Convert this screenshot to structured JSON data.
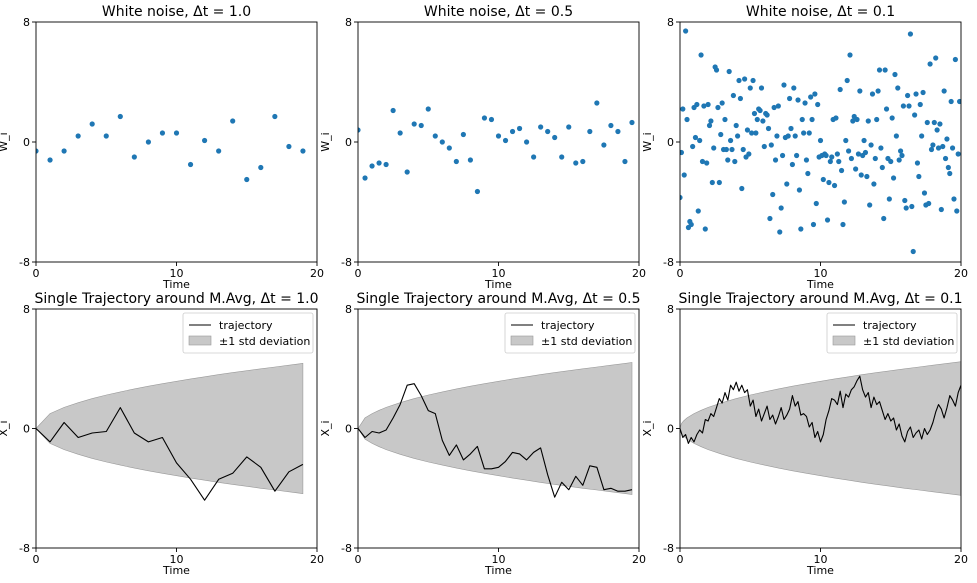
{
  "colors": {
    "point": "#1f77b4",
    "line": "#000000",
    "band": "#c8c8c8",
    "band_edge": "#9a9a9a"
  },
  "chart_data": [
    {
      "type": "scatter",
      "title": "White noise, Δt = 1.0",
      "xlabel": "Time",
      "ylabel": "W_i",
      "xlim": [
        0,
        20
      ],
      "ylim": [
        -8,
        8
      ],
      "xticks": [
        0,
        10,
        20
      ],
      "yticks": [
        -8,
        0,
        8
      ],
      "x": [
        0,
        1,
        2,
        3,
        4,
        5,
        6,
        7,
        8,
        9,
        10,
        11,
        12,
        13,
        14,
        15,
        16,
        17,
        18,
        19
      ],
      "y": [
        -0.6,
        -1.2,
        -0.6,
        0.4,
        1.2,
        0.4,
        1.7,
        -1.0,
        0.0,
        0.6,
        0.6,
        -1.5,
        0.1,
        -0.6,
        1.4,
        -2.5,
        -1.7,
        1.7,
        -0.3,
        -0.6
      ]
    },
    {
      "type": "scatter",
      "title": "White noise, Δt = 0.5",
      "xlabel": "Time",
      "ylabel": "W_i",
      "xlim": [
        0,
        20
      ],
      "ylim": [
        -8,
        8
      ],
      "xticks": [
        0,
        10,
        20
      ],
      "yticks": [
        -8,
        0,
        8
      ],
      "x": [
        0,
        0.5,
        1,
        1.5,
        2,
        2.5,
        3,
        3.5,
        4,
        4.5,
        5,
        5.5,
        6,
        6.5,
        7,
        7.5,
        8,
        8.5,
        9,
        9.5,
        10,
        10.5,
        11,
        11.5,
        12,
        12.5,
        13,
        13.5,
        14,
        14.5,
        15,
        15.5,
        16,
        16.5,
        17,
        17.5,
        18,
        18.5,
        19,
        19.5
      ],
      "y": [
        0.8,
        -2.4,
        -1.6,
        -1.4,
        -1.5,
        2.1,
        0.6,
        -2.0,
        1.2,
        1.1,
        2.2,
        0.4,
        0.0,
        -0.4,
        -1.3,
        0.5,
        -1.2,
        -3.3,
        1.6,
        1.5,
        0.4,
        0.1,
        0.7,
        0.9,
        0.0,
        -1.0,
        1.0,
        0.7,
        0.3,
        -1.0,
        1.0,
        -1.4,
        -1.3,
        0.7,
        2.6,
        -0.2,
        1.1,
        0.7,
        -1.3,
        1.3
      ]
    },
    {
      "type": "scatter",
      "title": "White noise, Δt = 0.1",
      "xlabel": "Time",
      "ylabel": "W_i",
      "xlim": [
        0,
        20
      ],
      "ylim": [
        -8,
        8
      ],
      "xticks": [
        0,
        10,
        20
      ],
      "yticks": [
        -8,
        0,
        8
      ],
      "x": [
        0,
        0.1,
        0.2,
        0.3,
        0.4,
        0.5,
        0.6,
        0.7,
        0.8,
        0.9,
        1,
        1.1,
        1.2,
        1.3,
        1.4,
        1.5,
        1.6,
        1.7,
        1.8,
        1.9,
        2,
        2.1,
        2.2,
        2.3,
        2.4,
        2.5,
        2.6,
        2.7,
        2.8,
        2.9,
        3,
        3.1,
        3.2,
        3.3,
        3.4,
        3.5,
        3.6,
        3.7,
        3.8,
        3.9,
        4,
        4.1,
        4.2,
        4.3,
        4.4,
        4.5,
        4.6,
        4.7,
        4.8,
        4.9,
        5,
        5.1,
        5.2,
        5.3,
        5.4,
        5.5,
        5.6,
        5.7,
        5.8,
        5.9,
        6,
        6.1,
        6.2,
        6.3,
        6.4,
        6.5,
        6.6,
        6.7,
        6.8,
        6.9,
        7,
        7.1,
        7.2,
        7.3,
        7.4,
        7.5,
        7.6,
        7.7,
        7.8,
        7.9,
        8,
        8.1,
        8.2,
        8.3,
        8.4,
        8.5,
        8.6,
        8.7,
        8.8,
        8.9,
        9,
        9.1,
        9.2,
        9.3,
        9.4,
        9.5,
        9.6,
        9.7,
        9.8,
        9.9,
        10,
        10.1,
        10.2,
        10.3,
        10.4,
        10.5,
        10.6,
        10.7,
        10.8,
        10.9,
        11,
        11.1,
        11.2,
        11.3,
        11.4,
        11.5,
        11.6,
        11.7,
        11.8,
        11.9,
        12,
        12.1,
        12.2,
        12.3,
        12.4,
        12.5,
        12.6,
        12.7,
        12.8,
        12.9,
        13,
        13.1,
        13.2,
        13.3,
        13.4,
        13.5,
        13.6,
        13.7,
        13.8,
        13.9,
        14,
        14.1,
        14.2,
        14.3,
        14.4,
        14.5,
        14.6,
        14.7,
        14.8,
        14.9,
        15,
        15.1,
        15.2,
        15.3,
        15.4,
        15.5,
        15.6,
        15.7,
        15.8,
        15.9,
        16,
        16.1,
        16.2,
        16.3,
        16.4,
        16.5,
        16.6,
        16.7,
        16.8,
        16.9,
        17,
        17.1,
        17.2,
        17.3,
        17.4,
        17.5,
        17.6,
        17.7,
        17.8,
        17.9,
        18,
        18.1,
        18.2,
        18.3,
        18.4,
        18.5,
        18.6,
        18.7,
        18.8,
        18.9,
        19,
        19.1,
        19.2,
        19.3,
        19.4,
        19.5,
        19.6,
        19.7,
        19.8,
        19.9
      ],
      "y": [
        -3.7,
        -0.7,
        2.2,
        -2.2,
        7.4,
        1.5,
        -5.7,
        -5.3,
        -5.5,
        -0.3,
        2.3,
        0.3,
        2.5,
        -4.6,
        0.1,
        5.8,
        -1.3,
        2.4,
        -5.8,
        -1.4,
        2.5,
        1.1,
        1.4,
        -2.7,
        -0.4,
        5.0,
        4.8,
        2.3,
        -2.7,
        0.5,
        2.6,
        -0.5,
        1.5,
        -0.5,
        -1.2,
        4.7,
        0.1,
        -0.5,
        3.1,
        -1.3,
        1.1,
        0.4,
        4.1,
        2.9,
        -3.1,
        -0.5,
        4.2,
        -1.0,
        0.8,
        -0.8,
        3.6,
        0.6,
        4.1,
        1.9,
        0.6,
        1.5,
        2.2,
        2.1,
        3.6,
        1.4,
        -0.3,
        1.9,
        1.8,
        0.9,
        -5.1,
        -0.2,
        -3.5,
        2.3,
        -1.2,
        0.4,
        2.4,
        -6.0,
        -4.4,
        -0.9,
        3.8,
        0.3,
        -2.8,
        0.4,
        2.9,
        0.9,
        -1.5,
        3.6,
        0.4,
        -0.9,
        2.8,
        -3.2,
        -5.8,
        1.5,
        0.6,
        2.6,
        -1.2,
        -2.1,
        0.6,
        3.0,
        1.5,
        -5.5,
        3.2,
        -4.1,
        2.5,
        -1.0,
        0.1,
        -0.9,
        -2.5,
        -0.8,
        -0.9,
        -5.2,
        -2.7,
        -1.3,
        -1.0,
        1.5,
        -2.9,
        1.6,
        -0.8,
        -1.3,
        3.5,
        -1.9,
        -5.5,
        -4.0,
        0.1,
        4.1,
        -0.6,
        5.8,
        -1.1,
        1.4,
        1.7,
        -1.8,
        1.5,
        -0.8,
        3.4,
        -2.2,
        -0.9,
        0.1,
        -0.7,
        -2.3,
        1.4,
        -4.2,
        -0.2,
        3.2,
        -2.8,
        -1.1,
        1.5,
        3.4,
        4.8,
        -0.4,
        -1.7,
        -5.1,
        4.8,
        2.2,
        -1.1,
        -3.8,
        -1.3,
        1.6,
        -2.4,
        4.5,
        0.4,
        3.6,
        -1.2,
        -0.6,
        -0.9,
        2.4,
        -3.9,
        -4.4,
        3.1,
        2.4,
        7.2,
        -4.3,
        -7.3,
        1.8,
        3.2,
        -1.4,
        -2.3,
        2.5,
        0.4,
        3.3,
        -3.4,
        -4.2,
        1.3,
        -4.1,
        5.2,
        -0.5,
        -0.2,
        1.3,
        5.6,
        0.8,
        -0.4,
        1.2,
        -4.5,
        -0.3,
        3.4,
        -1.1,
        0.2,
        -1.7,
        -2.1,
        2.7,
        -0.4,
        -3.8,
        5.5,
        -4.6,
        -0.8,
        2.7
      ]
    },
    {
      "type": "line",
      "title": "Single Trajectory around M.Avg, Δt = 1.0",
      "xlabel": "Time",
      "ylabel": "X_i",
      "xlim": [
        0,
        20
      ],
      "ylim": [
        -8,
        8
      ],
      "xticks": [
        0,
        10,
        20
      ],
      "yticks": [
        -8,
        0,
        8
      ],
      "legend": [
        "trajectory",
        "±1 std deviation"
      ],
      "band_t": [
        0,
        1,
        2,
        3,
        4,
        5,
        6,
        7,
        8,
        9,
        10,
        11,
        12,
        13,
        14,
        15,
        16,
        17,
        18,
        19
      ],
      "band_std": [
        0,
        1.0,
        1.41,
        1.73,
        2.0,
        2.24,
        2.45,
        2.65,
        2.83,
        3.0,
        3.16,
        3.32,
        3.46,
        3.61,
        3.74,
        3.87,
        4.0,
        4.12,
        4.24,
        4.36
      ],
      "x": [
        0,
        1,
        2,
        3,
        4,
        5,
        6,
        7,
        8,
        9,
        10,
        11,
        12,
        13,
        14,
        15,
        16,
        17,
        18,
        19
      ],
      "y": [
        0.0,
        -0.9,
        0.4,
        -0.6,
        -0.3,
        -0.2,
        1.4,
        -0.3,
        -0.9,
        -0.6,
        -2.3,
        -3.4,
        -4.8,
        -3.4,
        -3.0,
        -1.9,
        -2.6,
        -4.2,
        -2.9,
        -2.4
      ]
    },
    {
      "type": "line",
      "title": "Single Trajectory around M.Avg, Δt = 0.5",
      "xlabel": "Time",
      "ylabel": "X_i",
      "xlim": [
        0,
        20
      ],
      "ylim": [
        -8,
        8
      ],
      "xticks": [
        0,
        10,
        20
      ],
      "yticks": [
        -8,
        0,
        8
      ],
      "legend": [
        "trajectory",
        "±1 std deviation"
      ],
      "band_t": [
        0,
        0.5,
        1,
        1.5,
        2,
        3,
        4,
        5,
        6,
        7,
        8,
        9,
        10,
        11,
        12,
        13,
        14,
        15,
        16,
        17,
        18,
        19,
        19.5
      ],
      "band_std": [
        0,
        0.71,
        1.0,
        1.22,
        1.41,
        1.73,
        2.0,
        2.24,
        2.45,
        2.65,
        2.83,
        3.0,
        3.16,
        3.32,
        3.46,
        3.61,
        3.74,
        3.87,
        4.0,
        4.12,
        4.24,
        4.36,
        4.42
      ],
      "x": [
        0,
        0.5,
        1,
        1.5,
        2,
        2.5,
        3,
        3.5,
        4,
        4.5,
        5,
        5.5,
        6,
        6.5,
        7,
        7.5,
        8,
        8.5,
        9,
        9.5,
        10,
        10.5,
        11,
        11.5,
        12,
        12.5,
        13,
        13.5,
        14,
        14.5,
        15,
        15.5,
        16,
        16.5,
        17,
        17.5,
        18,
        18.5,
        19,
        19.5
      ],
      "y": [
        0.0,
        -0.6,
        -0.2,
        -0.3,
        -0.1,
        0.7,
        1.6,
        2.9,
        3.0,
        2.2,
        1.2,
        1.0,
        -0.8,
        -1.8,
        -1.1,
        -2.1,
        -1.7,
        -1.2,
        -2.7,
        -2.7,
        -2.6,
        -2.2,
        -1.6,
        -1.7,
        -2.1,
        -1.6,
        -1.3,
        -3.1,
        -4.6,
        -3.6,
        -4.1,
        -3.2,
        -3.8,
        -2.5,
        -2.6,
        -4.1,
        -4.0,
        -4.2,
        -4.2,
        -4.1
      ]
    },
    {
      "type": "line",
      "title": "Single Trajectory around M.Avg, Δt = 0.1",
      "xlabel": "Time",
      "ylabel": "X_i",
      "xlim": [
        0,
        20
      ],
      "ylim": [
        -8,
        8
      ],
      "xticks": [
        0,
        10,
        20
      ],
      "yticks": [
        -8,
        0,
        8
      ],
      "legend": [
        "trajectory",
        "±1 std deviation"
      ],
      "band_t": [
        0,
        0.1,
        0.25,
        0.5,
        1,
        1.5,
        2,
        3,
        4,
        5,
        6,
        7,
        8,
        9,
        10,
        11,
        12,
        13,
        14,
        15,
        16,
        17,
        18,
        19,
        20
      ],
      "band_std": [
        0,
        0.32,
        0.5,
        0.71,
        1.0,
        1.22,
        1.41,
        1.73,
        2.0,
        2.24,
        2.45,
        2.65,
        2.83,
        3.0,
        3.16,
        3.32,
        3.46,
        3.61,
        3.74,
        3.87,
        4.0,
        4.12,
        4.24,
        4.36,
        4.47
      ],
      "x": [
        0,
        0.2,
        0.4,
        0.6,
        0.8,
        1.0,
        1.2,
        1.4,
        1.6,
        1.8,
        2.0,
        2.2,
        2.4,
        2.6,
        2.8,
        3.0,
        3.2,
        3.4,
        3.6,
        3.8,
        4.0,
        4.2,
        4.4,
        4.6,
        4.8,
        5.0,
        5.2,
        5.4,
        5.6,
        5.8,
        6.0,
        6.2,
        6.4,
        6.6,
        6.8,
        7.0,
        7.2,
        7.4,
        7.6,
        7.8,
        8.0,
        8.2,
        8.4,
        8.6,
        8.8,
        9.0,
        9.2,
        9.4,
        9.6,
        9.8,
        10.0,
        10.2,
        10.4,
        10.6,
        10.8,
        11.0,
        11.2,
        11.4,
        11.6,
        11.8,
        12.0,
        12.2,
        12.4,
        12.6,
        12.8,
        13.0,
        13.2,
        13.4,
        13.6,
        13.8,
        14.0,
        14.2,
        14.4,
        14.6,
        14.8,
        15.0,
        15.2,
        15.4,
        15.6,
        15.8,
        16.0,
        16.2,
        16.4,
        16.6,
        16.8,
        17.0,
        17.2,
        17.4,
        17.6,
        17.8,
        18.0,
        18.2,
        18.4,
        18.6,
        18.8,
        19.0,
        19.2,
        19.4,
        19.6,
        19.8,
        20.0
      ],
      "y": [
        0.0,
        -0.6,
        -0.4,
        -1.0,
        -0.6,
        -0.9,
        -0.4,
        -0.1,
        -0.3,
        0.6,
        0.5,
        1.0,
        0.8,
        1.4,
        2.0,
        1.7,
        2.4,
        1.9,
        2.9,
        2.6,
        3.1,
        2.5,
        2.9,
        2.4,
        2.6,
        1.5,
        1.9,
        0.8,
        1.3,
        0.5,
        1.0,
        1.5,
        0.6,
        0.9,
        0.3,
        0.8,
        1.4,
        0.6,
        0.9,
        1.3,
        2.2,
        1.5,
        1.8,
        0.9,
        1.0,
        0.8,
        0.1,
        0.4,
        -0.6,
        -0.2,
        -0.9,
        -0.4,
        0.6,
        1.2,
        2.0,
        1.9,
        1.6,
        2.5,
        1.4,
        2.3,
        2.1,
        2.6,
        2.8,
        3.2,
        3.5,
        2.6,
        2.1,
        2.4,
        1.4,
        2.1,
        1.6,
        1.8,
        1.2,
        0.6,
        1.0,
        0.5,
        0.7,
        -0.1,
        0.3,
        -0.5,
        -0.9,
        -0.2,
        0.1,
        -0.6,
        -0.3,
        -0.1,
        -0.7,
        0.0,
        -0.4,
        -0.1,
        0.4,
        1.1,
        1.6,
        1.3,
        0.7,
        1.4,
        2.2,
        1.9,
        1.5,
        2.4,
        2.9
      ]
    }
  ]
}
